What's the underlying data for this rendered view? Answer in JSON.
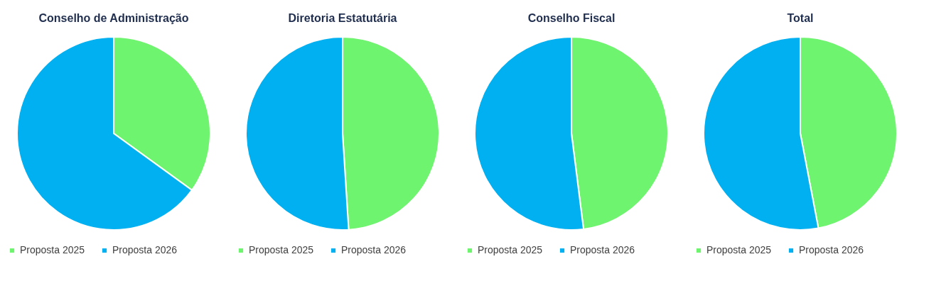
{
  "chart_data": [
    {
      "type": "pie",
      "title": "Conselho  de Administração",
      "categories": [
        "Proposta 2025",
        "Proposta 2026"
      ],
      "values": [
        35,
        65
      ],
      "colors": [
        "#6ef46e",
        "#00b0f0"
      ],
      "legend": "bottom"
    },
    {
      "type": "pie",
      "title": "Diretoria Estatutária",
      "categories": [
        "Proposta 2025",
        "Proposta 2026"
      ],
      "values": [
        49,
        51
      ],
      "colors": [
        "#6ef46e",
        "#00b0f0"
      ],
      "legend": "bottom"
    },
    {
      "type": "pie",
      "title": "Conselho  Fiscal",
      "categories": [
        "Proposta 2025",
        "Proposta 2026"
      ],
      "values": [
        48,
        52
      ],
      "colors": [
        "#6ef46e",
        "#00b0f0"
      ],
      "legend": "bottom"
    },
    {
      "type": "pie",
      "title": "Total",
      "categories": [
        "Proposta 2025",
        "Proposta 2026"
      ],
      "values": [
        47,
        53
      ],
      "colors": [
        "#6ef46e",
        "#00b0f0"
      ],
      "legend": "bottom"
    }
  ]
}
